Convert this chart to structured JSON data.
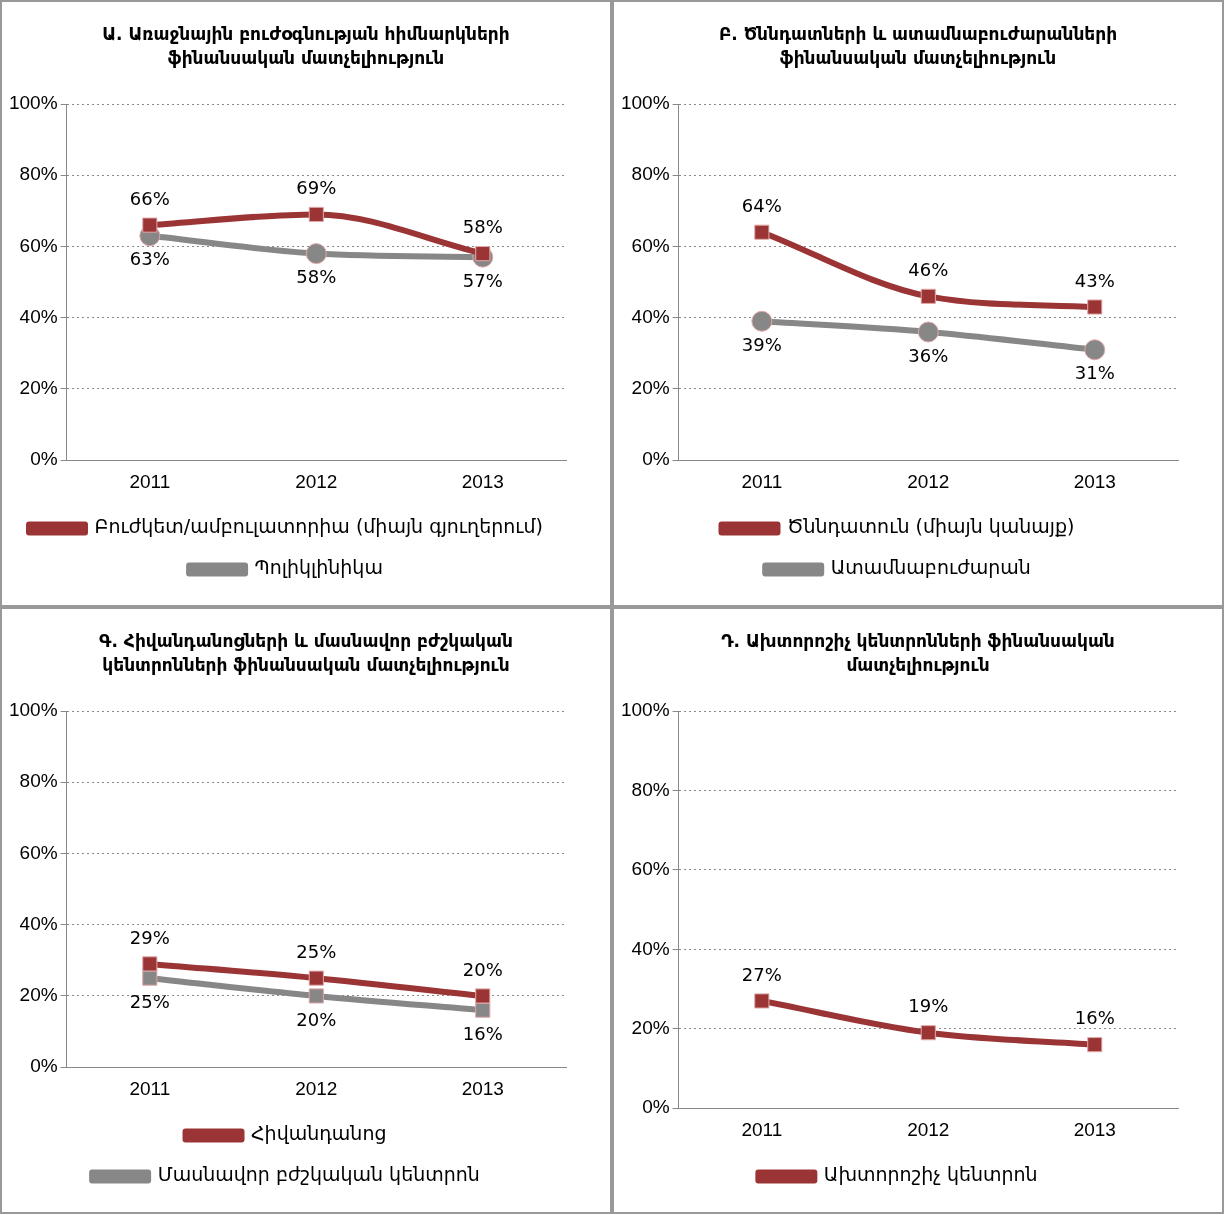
{
  "chart_data": [
    {
      "type": "line",
      "title": "Ա. Առաջնային բուժօգնության հիմնարկների ֆինանսական մատչելիություն",
      "categories": [
        "2011",
        "2012",
        "2013"
      ],
      "series": [
        {
          "name": "Բուժկետ/ամբուլատորիա (միայն գյուղերում)",
          "color": "#9b3535",
          "values": [
            66,
            69,
            58
          ],
          "value_labels": [
            "66%",
            "69%",
            "58%"
          ],
          "marker": "square"
        },
        {
          "name": "Պոլիկլինիկա",
          "color": "#878787",
          "values": [
            63,
            58,
            57
          ],
          "value_labels": [
            "63%",
            "58%",
            "57%"
          ],
          "marker": "circle"
        }
      ],
      "ylim": [
        0,
        100
      ],
      "yticks": [
        {
          "value": 0,
          "label": "0%"
        },
        {
          "value": 20,
          "label": "20%"
        },
        {
          "value": 40,
          "label": "40%"
        },
        {
          "value": 60,
          "label": "60%"
        },
        {
          "value": 80,
          "label": "80%"
        },
        {
          "value": 100,
          "label": "100%"
        }
      ],
      "grid": "y",
      "legend": "bottom"
    },
    {
      "type": "line",
      "title": "Բ. Ծննդատների և ատամնաբուժարանների ֆինանսական մատչելիություն",
      "categories": [
        "2011",
        "2012",
        "2013"
      ],
      "series": [
        {
          "name": "Ծննդատուն (միայն կանայք)",
          "color": "#9b3535",
          "values": [
            64,
            46,
            43
          ],
          "value_labels": [
            "64%",
            "46%",
            "43%"
          ],
          "marker": "square"
        },
        {
          "name": "Ատամնաբուժարան",
          "color": "#878787",
          "values": [
            39,
            36,
            31
          ],
          "value_labels": [
            "39%",
            "36%",
            "31%"
          ],
          "marker": "circle"
        }
      ],
      "ylim": [
        0,
        100
      ],
      "yticks": [
        {
          "value": 0,
          "label": "0%"
        },
        {
          "value": 20,
          "label": "20%"
        },
        {
          "value": 40,
          "label": "40%"
        },
        {
          "value": 60,
          "label": "60%"
        },
        {
          "value": 80,
          "label": "80%"
        },
        {
          "value": 100,
          "label": "100%"
        }
      ],
      "grid": "y",
      "legend": "bottom"
    },
    {
      "type": "line",
      "title": "Գ. Հիվանդանոցների և մասնավոր բժշկական կենտրոնների ֆինանսական մատչելիություն",
      "categories": [
        "2011",
        "2012",
        "2013"
      ],
      "series": [
        {
          "name": "Հիվանդանոց",
          "color": "#9b3535",
          "values": [
            29,
            25,
            20
          ],
          "value_labels": [
            "29%",
            "25%",
            "20%"
          ],
          "marker": "square"
        },
        {
          "name": "Մասնավոր բժշկական կենտրոն",
          "color": "#878787",
          "values": [
            25,
            20,
            16
          ],
          "value_labels": [
            "25%",
            "20%",
            "16%"
          ],
          "marker": "square"
        }
      ],
      "ylim": [
        0,
        100
      ],
      "yticks": [
        {
          "value": 0,
          "label": "0%"
        },
        {
          "value": 20,
          "label": "20%"
        },
        {
          "value": 40,
          "label": "40%"
        },
        {
          "value": 60,
          "label": "60%"
        },
        {
          "value": 80,
          "label": "80%"
        },
        {
          "value": 100,
          "label": "100%"
        }
      ],
      "grid": "y",
      "legend": "bottom"
    },
    {
      "type": "line",
      "title": "Դ. Ախտորոշիչ կենտրոնների ֆինանսական մատչելիություն",
      "categories": [
        "2011",
        "2012",
        "2013"
      ],
      "series": [
        {
          "name": "Ախտորոշիչ կենտրոն",
          "color": "#9b3535",
          "values": [
            27,
            19,
            16
          ],
          "value_labels": [
            "27%",
            "19%",
            "16%"
          ],
          "marker": "square"
        }
      ],
      "ylim": [
        0,
        100
      ],
      "yticks": [
        {
          "value": 0,
          "label": "0%"
        },
        {
          "value": 20,
          "label": "20%"
        },
        {
          "value": 40,
          "label": "40%"
        },
        {
          "value": 60,
          "label": "60%"
        },
        {
          "value": 80,
          "label": "80%"
        },
        {
          "value": 100,
          "label": "100%"
        }
      ],
      "grid": "y",
      "legend": "bottom"
    }
  ]
}
